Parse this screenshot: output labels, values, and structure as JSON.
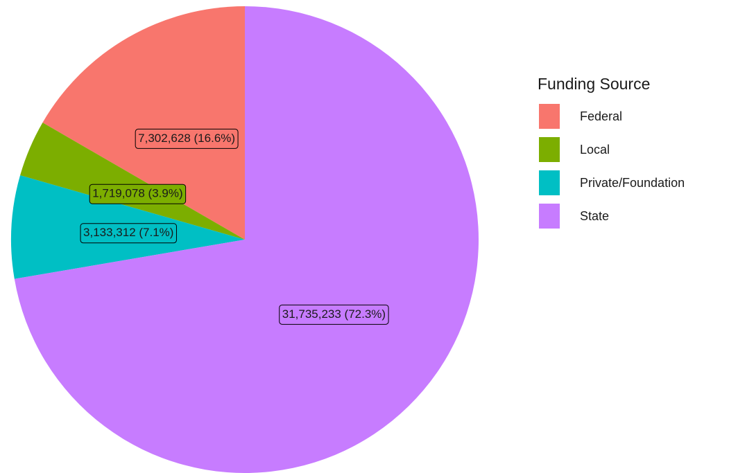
{
  "chart_data": {
    "type": "pie",
    "legend_title": "Funding Source",
    "categories": [
      "Federal",
      "Local",
      "Private/Foundation",
      "State"
    ],
    "values": [
      7302628,
      1719078,
      3133312,
      31735233
    ],
    "value_labels": [
      "7,302,628 (16.6%)",
      "1,719,078 (3.9%)",
      "3,133,312 (7.1%)",
      "31,735,233 (72.3%)"
    ],
    "colors": [
      "#F8766D",
      "#7CAE00",
      "#00BFC4",
      "#C77CFF"
    ],
    "legend": "right"
  }
}
